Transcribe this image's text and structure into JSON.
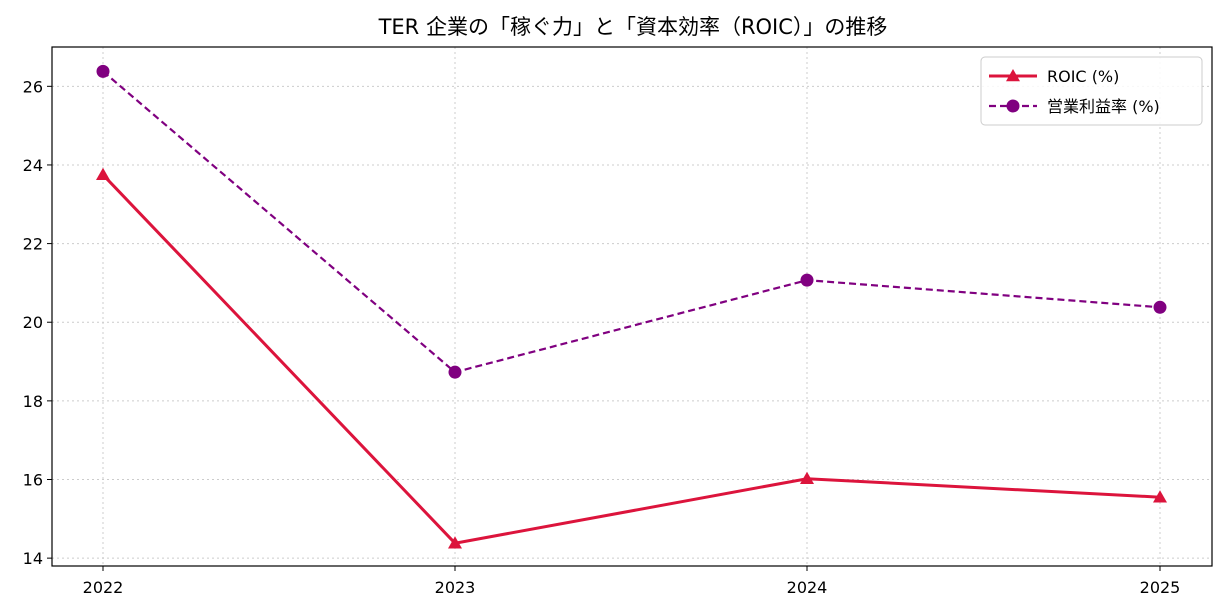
{
  "chart_data": {
    "type": "line",
    "title": "TER 企業の「稼ぐ力」と「資本効率（ROIC）」の推移",
    "xlabel": "",
    "ylabel": "",
    "categories": [
      "2022",
      "2023",
      "2024",
      "2025"
    ],
    "ylim": [
      13.8,
      27.0
    ],
    "yticks": [
      14,
      16,
      18,
      20,
      22,
      24,
      26
    ],
    "grid": true,
    "legend_position": "top-right",
    "series": [
      {
        "name": "ROIC (%)",
        "values": [
          23.75,
          14.38,
          16.02,
          15.55
        ],
        "color": "#dc143c",
        "line_style": "solid",
        "marker": "triangle"
      },
      {
        "name": "営業利益率 (%)",
        "values": [
          26.38,
          18.73,
          21.07,
          20.38
        ],
        "color": "#800080",
        "line_style": "dashed",
        "marker": "circle"
      }
    ]
  }
}
